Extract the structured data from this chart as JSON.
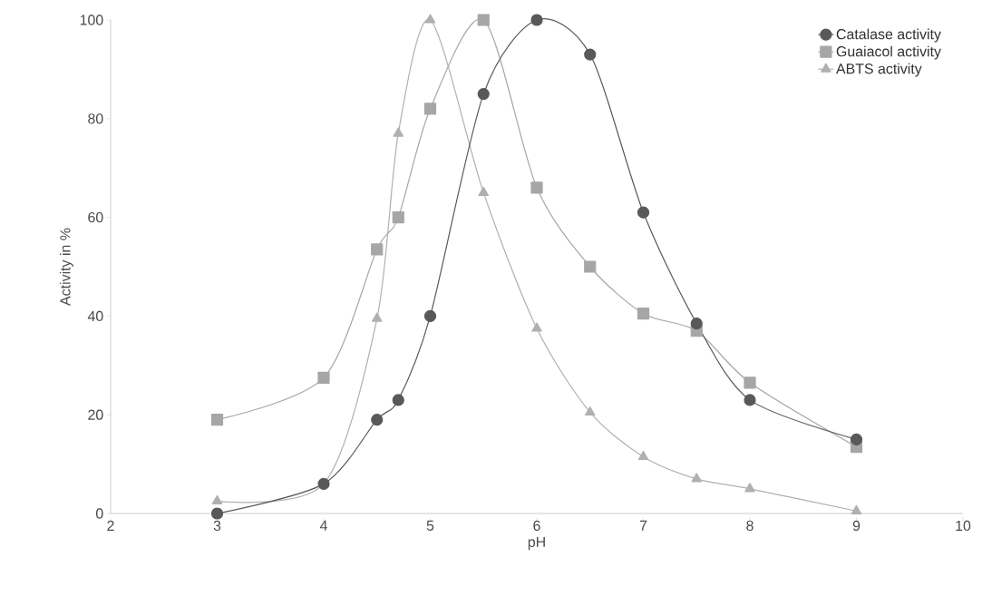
{
  "chart_data": {
    "type": "line",
    "xlabel": "pH",
    "ylabel": "Activity in %",
    "xlim": [
      2,
      10
    ],
    "xticks": [
      2,
      3,
      4,
      5,
      6,
      7,
      8,
      9,
      10
    ],
    "ylim": [
      0,
      100
    ],
    "yticks": [
      0,
      20,
      40,
      60,
      80,
      100
    ],
    "x": [
      3,
      4,
      4.5,
      4.7,
      5,
      5.5,
      6,
      6.5,
      7,
      7.5,
      8,
      9
    ],
    "legend": "top right",
    "grid": false,
    "series": [
      {
        "name": "Catalase activity",
        "color": "#595959",
        "marker": "circle",
        "values": [
          0,
          6,
          19,
          23,
          40,
          85,
          100,
          93,
          61,
          38.5,
          23,
          15
        ]
      },
      {
        "name": "Guaiacol activity",
        "color": "#a6a6a6",
        "marker": "square",
        "values": [
          19,
          27.5,
          53.5,
          60,
          82,
          100,
          66,
          50,
          40.5,
          37,
          26.5,
          13.5
        ]
      },
      {
        "name": "ABTS activity",
        "color": "#b0b0b0",
        "marker": "triangle",
        "values": [
          2.5,
          6,
          39.5,
          77,
          100,
          65,
          37.5,
          20.5,
          11.5,
          7,
          5,
          0.5
        ]
      }
    ]
  }
}
